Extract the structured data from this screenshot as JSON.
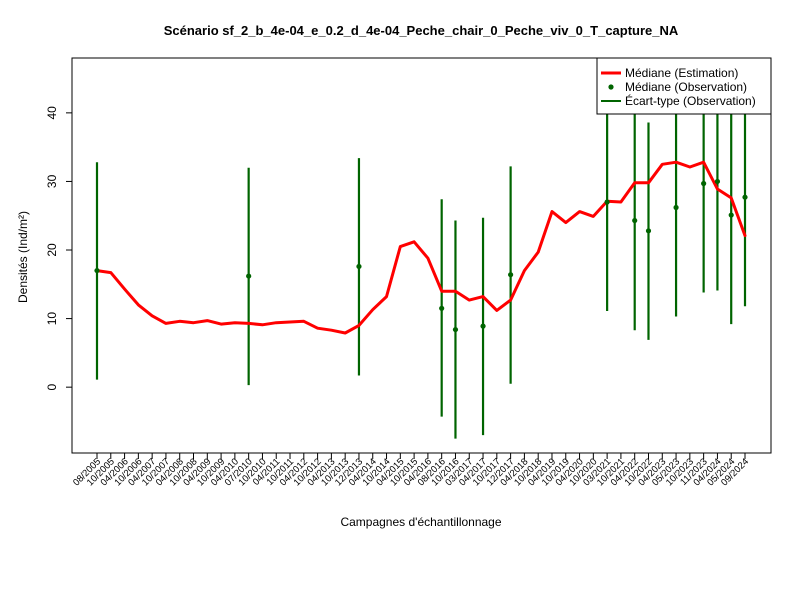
{
  "chart_data": {
    "type": "line",
    "title": "Scénario sf_2_b_4e-04_e_0.2_d_4e-04_Peche_chair_0_Peche_viv_0_T_capture_NA",
    "xlabel": "Campagnes d'échantillonnage",
    "ylabel": "Densités (Ind/m²)",
    "ylim": [
      -9.6,
      48.0
    ],
    "yticks": [
      0,
      10,
      20,
      30,
      40
    ],
    "grid": false,
    "legend_position": "top-right",
    "categories": [
      "08/2005",
      "10/2005",
      "04/2006",
      "10/2006",
      "04/2007",
      "10/2007",
      "04/2008",
      "10/2008",
      "04/2009",
      "10/2009",
      "04/2010",
      "07/2010",
      "10/2010",
      "04/2011",
      "10/2011",
      "04/2012",
      "10/2012",
      "04/2013",
      "10/2013",
      "12/2013",
      "04/2014",
      "10/2014",
      "04/2015",
      "10/2015",
      "04/2016",
      "08/2016",
      "10/2016",
      "03/2017",
      "04/2017",
      "10/2017",
      "12/2017",
      "04/2018",
      "10/2018",
      "04/2019",
      "10/2019",
      "04/2020",
      "10/2020",
      "03/2021",
      "10/2021",
      "04/2022",
      "10/2022",
      "04/2023",
      "05/2023",
      "10/2023",
      "11/2023",
      "04/2024",
      "05/2024",
      "09/2024"
    ],
    "series": [
      {
        "name": "Médiane (Estimation)",
        "color": "#ff0000",
        "values": [
          17.0,
          16.7,
          14.3,
          12.0,
          10.4,
          9.3,
          9.6,
          9.4,
          9.7,
          9.2,
          9.4,
          9.3,
          9.1,
          9.4,
          9.5,
          9.6,
          8.6,
          8.3,
          7.9,
          9.0,
          11.3,
          13.2,
          20.5,
          21.2,
          18.8,
          14.0,
          14.0,
          12.7,
          13.2,
          11.2,
          12.7,
          17.0,
          19.7,
          25.6,
          24.0,
          25.6,
          24.9,
          27.1,
          27.0,
          29.8,
          29.8,
          32.5,
          32.8,
          32.1,
          32.8,
          28.9,
          27.6,
          22.1
        ]
      },
      {
        "name": "Médiane (Observation)",
        "color": "#006400",
        "points": [
          {
            "x": "08/2005",
            "y": 17.0
          },
          {
            "x": "07/2010",
            "y": 16.2
          },
          {
            "x": "12/2013",
            "y": 17.6
          },
          {
            "x": "08/2016",
            "y": 11.5
          },
          {
            "x": "10/2016",
            "y": 8.4
          },
          {
            "x": "04/2017",
            "y": 8.9
          },
          {
            "x": "12/2017",
            "y": 16.4
          },
          {
            "x": "03/2021",
            "y": 27.0
          },
          {
            "x": "04/2022",
            "y": 24.3
          },
          {
            "x": "10/2022",
            "y": 22.8
          },
          {
            "x": "05/2023",
            "y": 26.2
          },
          {
            "x": "11/2023",
            "y": 29.7
          },
          {
            "x": "04/2024",
            "y": 30.0
          },
          {
            "x": "05/2024",
            "y": 25.1
          },
          {
            "x": "09/2024",
            "y": 27.7
          }
        ]
      },
      {
        "name": "Écart-type (Observation)",
        "color": "#006400",
        "intervals": [
          {
            "x": "08/2005",
            "low": 1.1,
            "high": 32.8
          },
          {
            "x": "07/2010",
            "low": 0.3,
            "high": 32.0
          },
          {
            "x": "12/2013",
            "low": 1.7,
            "high": 33.4
          },
          {
            "x": "08/2016",
            "low": -4.3,
            "high": 27.4
          },
          {
            "x": "10/2016",
            "low": -7.5,
            "high": 24.3
          },
          {
            "x": "04/2017",
            "low": -7.0,
            "high": 24.7
          },
          {
            "x": "12/2017",
            "low": 0.5,
            "high": 32.2
          },
          {
            "x": "03/2021",
            "low": 11.1,
            "high": 48.0
          },
          {
            "x": "04/2022",
            "low": 8.3,
            "high": 48.0
          },
          {
            "x": "10/2022",
            "low": 6.9,
            "high": 38.6
          },
          {
            "x": "05/2023",
            "low": 10.3,
            "high": 48.0
          },
          {
            "x": "11/2023",
            "low": 13.8,
            "high": 48.0
          },
          {
            "x": "04/2024",
            "low": 14.1,
            "high": 48.0
          },
          {
            "x": "05/2024",
            "low": 9.2,
            "high": 48.0
          },
          {
            "x": "09/2024",
            "low": 11.8,
            "high": 48.0
          }
        ]
      }
    ]
  }
}
